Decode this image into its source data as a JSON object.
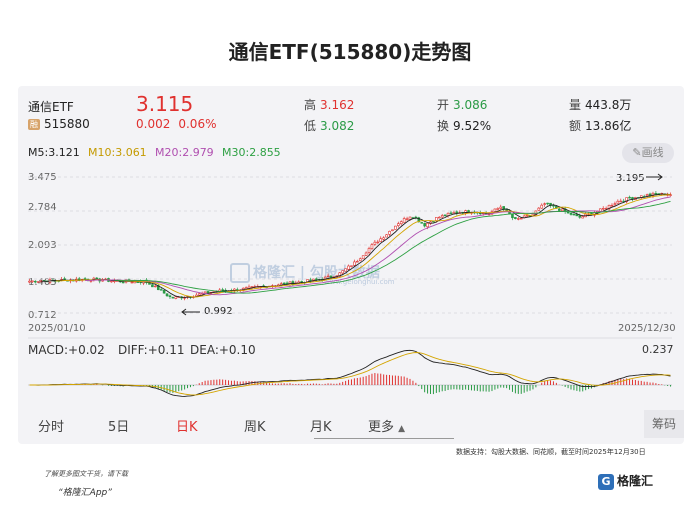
{
  "title": "通信ETF(515880)走势图",
  "quote": {
    "name": "通信ETF",
    "tag": "融",
    "code": "515880",
    "price": "3.115",
    "change": "0.002",
    "change_pct": "0.06%",
    "high_label": "高",
    "high": "3.162",
    "low_label": "低",
    "low": "3.082",
    "open_label": "开",
    "open": "3.086",
    "turnover_label": "换",
    "turnover": "9.52%",
    "volume_label": "量",
    "volume": "443.8万",
    "amount_label": "额",
    "amount": "13.86亿"
  },
  "ma": {
    "m5": "M5:3.121",
    "m10": "M10:3.061",
    "m20": "M20:2.979",
    "m30": "M30:2.855",
    "colors": {
      "m5": "#222222",
      "m10": "#d4a500",
      "m20": "#b04fb0",
      "m30": "#2ea043"
    }
  },
  "draw_button": "画线",
  "macd": {
    "macd": "MACD:+0.02",
    "diff": "DIFF:+0.11",
    "dea": "DEA:+0.10",
    "top_value": "0.237"
  },
  "tabs": [
    "分时",
    "5日",
    "日K",
    "周K",
    "月K",
    "更多"
  ],
  "active_tab": "日K",
  "chouma": "筹码",
  "source": "数据支持：勾股大数据、同花顺，截至时间2025年12月30日",
  "promo_line1": "了解更多图文干货，请下载",
  "promo_line2": "“格隆汇App”",
  "brand": "格隆汇",
  "watermark": "格隆汇 | 勾股大数据",
  "watermark_sub": "www.gelonghui.com",
  "colors": {
    "up": "#e0312f",
    "down": "#2a9a45"
  },
  "chart_data": {
    "type": "candlestick",
    "x_start": "2025/01/10",
    "x_end": "2025/12/30",
    "y_ticks": [
      "3.475",
      "2.784",
      "2.093",
      "1.403",
      "0.712"
    ],
    "y_range": [
      0.712,
      3.475
    ],
    "close_path": [
      [
        0,
        1.36
      ],
      [
        8,
        1.38
      ],
      [
        14,
        1.4
      ],
      [
        20,
        1.36
      ],
      [
        27,
        1.35
      ],
      [
        30,
        1.2
      ],
      [
        33,
        1.02
      ],
      [
        37,
        1.05
      ],
      [
        43,
        1.15
      ],
      [
        50,
        1.2
      ],
      [
        56,
        1.27
      ],
      [
        62,
        1.33
      ],
      [
        68,
        1.4
      ],
      [
        72,
        1.5
      ],
      [
        76,
        1.75
      ],
      [
        80,
        2.1
      ],
      [
        83,
        2.3
      ],
      [
        86,
        2.55
      ],
      [
        89,
        2.7
      ],
      [
        92,
        2.5
      ],
      [
        95,
        2.65
      ],
      [
        99,
        2.75
      ],
      [
        103,
        2.78
      ],
      [
        107,
        2.73
      ],
      [
        110,
        2.88
      ],
      [
        113,
        2.6
      ],
      [
        117,
        2.7
      ],
      [
        120,
        2.93
      ],
      [
        124,
        2.8
      ],
      [
        128,
        2.65
      ],
      [
        133,
        2.8
      ],
      [
        137,
        2.98
      ],
      [
        140,
        3.05
      ],
      [
        145,
        3.12
      ],
      [
        150,
        3.13
      ]
    ],
    "annotations": [
      {
        "text": "0.992",
        "value": 0.992
      },
      {
        "text": "3.195",
        "value": 3.195
      }
    ],
    "macd_top": 0.237
  }
}
